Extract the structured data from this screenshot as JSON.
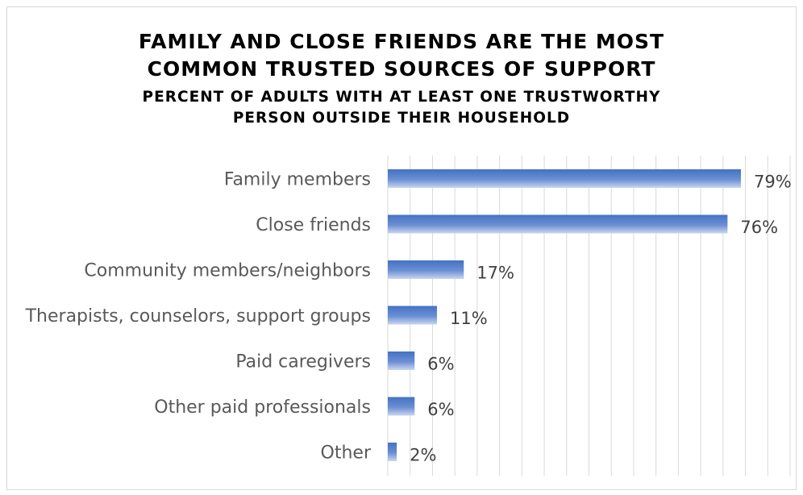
{
  "chart_data": {
    "type": "bar",
    "orientation": "horizontal",
    "title_lines": [
      "FAMILY AND CLOSE FRIENDS ARE THE MOST",
      "COMMON TRUSTED SOURCES OF SUPPORT"
    ],
    "subtitle_lines": [
      "PERCENT OF ADULTS WITH AT LEAST ONE TRUSTWORTHY",
      "PERSON OUTSIDE THEIR HOUSEHOLD"
    ],
    "categories": [
      "Family members",
      "Close friends",
      "Community members/neighbors",
      "Therapists, counselors, support groups",
      "Paid caregivers",
      "Other paid professionals",
      "Other"
    ],
    "values": [
      79,
      76,
      17,
      11,
      6,
      6,
      2
    ],
    "data_labels": [
      "79%",
      "76%",
      "17%",
      "11%",
      "6%",
      "6%",
      "2%"
    ],
    "xlim": [
      0,
      90
    ],
    "grid": true,
    "legend": "none",
    "bar_color": "#4472c4"
  }
}
